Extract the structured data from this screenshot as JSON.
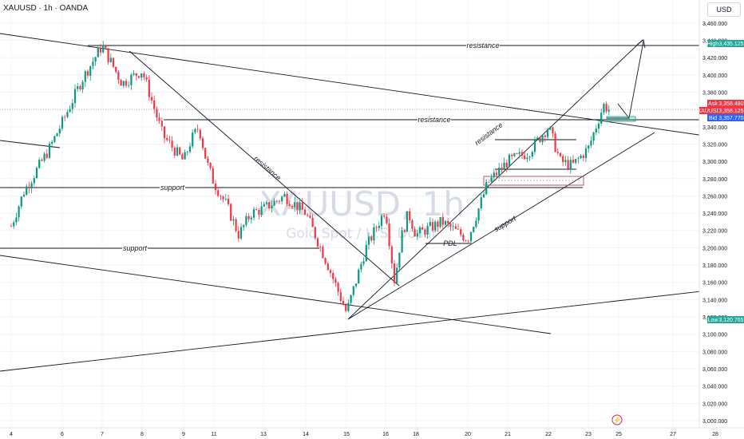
{
  "header": {
    "symbol_line": "XAUUSD · 1h · OANDA",
    "currency_button": "USD"
  },
  "watermark": {
    "ticker": "XAUUSD, 1h",
    "description": "Gold Spot / U.S. Dollar"
  },
  "colors": {
    "up": "#089981",
    "down": "#f23645",
    "line": "#131722",
    "grid": "#eef0f3",
    "ask": "#f23645",
    "bid": "#2962ff",
    "high": "#26a69a",
    "low": "#26a69a",
    "pink_box": "#b0416a",
    "green_box": "#22ab94"
  },
  "annotations": {
    "resistance_top": "resistance",
    "resistance_mid": "resistance",
    "resistance_diag": "resistance",
    "resistance_channel": "resistance",
    "support_left": "support",
    "support_lower": "support",
    "support_channel": "support",
    "pdl": "PDL"
  },
  "price_tags": {
    "high": {
      "label": "High",
      "value": "3,435.125"
    },
    "ask": {
      "label": "Ask",
      "value": "3,358.480"
    },
    "last": {
      "label": "XAUUSD",
      "value": "3,358.125"
    },
    "bid": {
      "label": "Bid",
      "value": "3,357.770"
    },
    "low": {
      "label": "Low",
      "value": "3,120.765"
    }
  },
  "event_marker": "⚡",
  "chart_data": {
    "type": "candlestick",
    "title": "XAUUSD · 1h · OANDA",
    "ylim": [
      3000,
      3470
    ],
    "y_ticks": [
      "3,460.000",
      "3,440.000",
      "3,420.000",
      "3,400.000",
      "3,380.000",
      "3,360.000",
      "3,340.000",
      "3,320.000",
      "3,300.000",
      "3,280.000",
      "3,260.000",
      "3,240.000",
      "3,220.000",
      "3,200.000",
      "3,180.000",
      "3,160.000",
      "3,140.000",
      "3,120.000",
      "3,100.000",
      "3,080.000",
      "3,060.000",
      "3,040.000",
      "3,020.000",
      "3,000.000"
    ],
    "y_tick_values": [
      3460,
      3440,
      3420,
      3400,
      3380,
      3360,
      3340,
      3320,
      3300,
      3280,
      3260,
      3240,
      3220,
      3200,
      3180,
      3160,
      3140,
      3120,
      3100,
      3080,
      3060,
      3040,
      3020,
      3000
    ],
    "x_ticks": [
      "4",
      "6",
      "7",
      "8",
      "9",
      "11",
      "13",
      "14",
      "15",
      "16",
      "18",
      "20",
      "21",
      "22",
      "23",
      "25",
      "27",
      "28"
    ],
    "horizontal_levels": {
      "resistance_top": 3435,
      "resistance_mid": 3342,
      "support_left": 3270,
      "support_lower": 3210,
      "pdl": 3211
    },
    "swing_path": [
      [
        "4",
        3225
      ],
      [
        "4.5",
        3265
      ],
      [
        "5",
        3290
      ],
      [
        "5.5",
        3315
      ],
      [
        "6",
        3345
      ],
      [
        "6.5",
        3395
      ],
      [
        "7",
        3434
      ],
      [
        "7.5",
        3390
      ],
      [
        "8",
        3405
      ],
      [
        "8.5",
        3330
      ],
      [
        "9",
        3300
      ],
      [
        "9.5",
        3325
      ],
      [
        "10",
        3340
      ],
      [
        "10.5",
        3300
      ],
      [
        "11",
        3275
      ],
      [
        "11.5",
        3250
      ],
      [
        "12",
        3215
      ],
      [
        "12.5",
        3240
      ],
      [
        "13",
        3245
      ],
      [
        "13.5",
        3260
      ],
      [
        "14",
        3240
      ],
      [
        "14.5",
        3185
      ],
      [
        "15",
        3125
      ],
      [
        "15.5",
        3200
      ],
      [
        "16",
        3245
      ],
      [
        "16.3",
        3200
      ],
      [
        "16.6",
        3160
      ],
      [
        "17",
        3210
      ],
      [
        "17.5",
        3240
      ],
      [
        "18",
        3215
      ],
      [
        "19",
        3230
      ],
      [
        "20",
        3210
      ],
      [
        "20.5",
        3275
      ],
      [
        "21",
        3300
      ],
      [
        "21.5",
        3310
      ],
      [
        "22",
        3340
      ],
      [
        "22.3",
        3300
      ],
      [
        "22.6",
        3295
      ],
      [
        "23",
        3315
      ],
      [
        "23.5",
        3340
      ],
      [
        "24",
        3365
      ],
      [
        "24.5",
        3358
      ]
    ]
  }
}
